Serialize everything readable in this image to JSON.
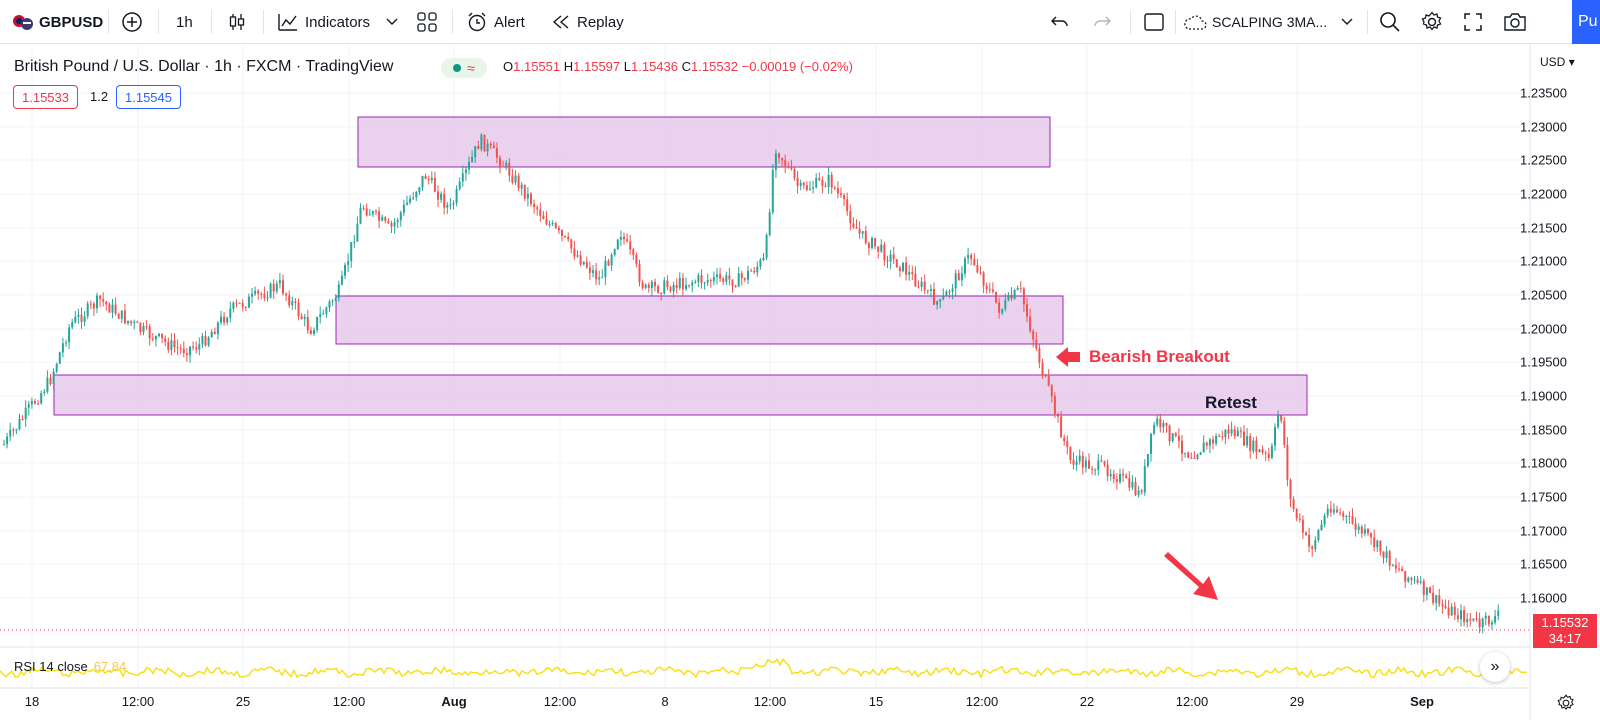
{
  "toolbar": {
    "symbol": "GBPUSD",
    "interval": "1h",
    "indicators_label": "Indicators",
    "alert_label": "Alert",
    "replay_label": "Replay",
    "layout_name": "SCALPING 3MA...",
    "publish_label": "Pu"
  },
  "legend": {
    "title": "British Pound / U.S. Dollar · 1h · FXCM · TradingView",
    "open_key": "O",
    "open": "1.15551",
    "high_key": "H",
    "high": "1.15597",
    "low_key": "L",
    "low": "1.15436",
    "close_key": "C",
    "close": "1.15532",
    "change": "−0.00019 (−0.02%)",
    "bid": "1.15533",
    "spread": "1.2",
    "ask": "1.15545"
  },
  "price_scale": {
    "currency": "USD",
    "ticks": [
      "1.23500",
      "1.23000",
      "1.22500",
      "1.22000",
      "1.21500",
      "1.21000",
      "1.20500",
      "1.20000",
      "1.19500",
      "1.19000",
      "1.18500",
      "1.18000",
      "1.17500",
      "1.17000",
      "1.16500",
      "1.16000"
    ],
    "last_price": "1.15532",
    "countdown": "34:17"
  },
  "time_scale": {
    "ticks": [
      "18",
      "12:00",
      "25",
      "12:00",
      "Aug",
      "12:00",
      "8",
      "12:00",
      "15",
      "12:00",
      "22",
      "12:00",
      "29",
      "Sep"
    ]
  },
  "annotations": {
    "bearish_breakout": "Bearish Breakout",
    "retest": "Retest"
  },
  "rsi": {
    "label": "RSI 14 close",
    "value": "67.84"
  },
  "colors": {
    "up": "#26a69a",
    "down": "#ef5350",
    "zone_fill": "#e1bee7",
    "zone_border": "#9c27b0",
    "annotation_red": "#f23645",
    "rsi_line": "#f7e01a",
    "accent": "#2962ff"
  }
}
